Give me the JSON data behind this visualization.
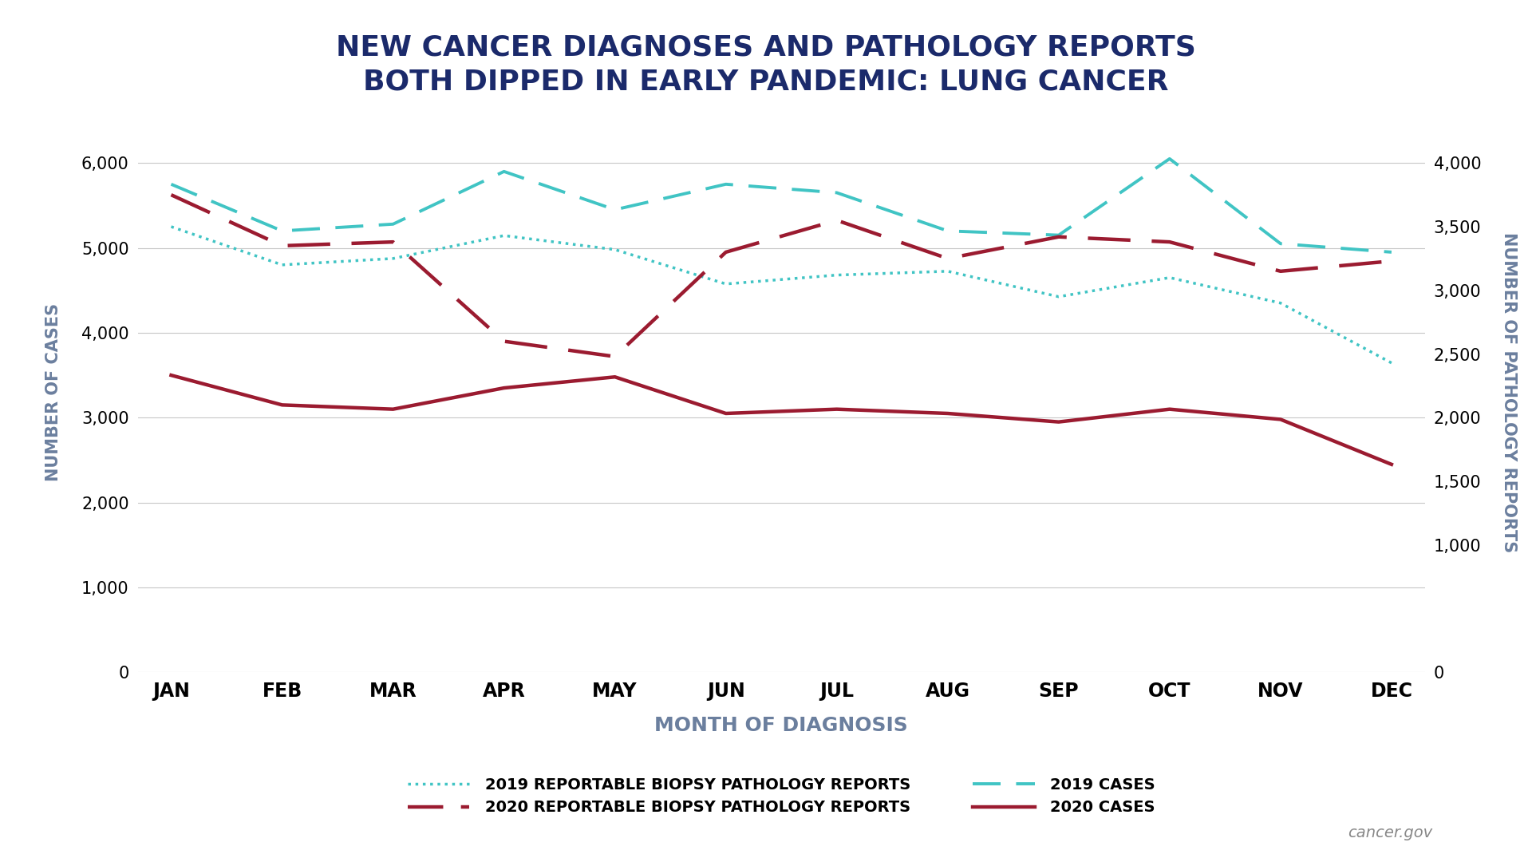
{
  "title_line1": "NEW CANCER DIAGNOSES AND PATHOLOGY REPORTS",
  "title_line2": "BOTH DIPPED IN EARLY PANDEMIC: LUNG CANCER",
  "xlabel": "MONTH OF DIAGNOSIS",
  "ylabel_left": "NUMBER OF CASES",
  "ylabel_right": "NUMBER OF PATHOLOGY REPORTS",
  "months": [
    "JAN",
    "FEB",
    "MAR",
    "APR",
    "MAY",
    "JUN",
    "JUL",
    "AUG",
    "SEP",
    "OCT",
    "NOV",
    "DEC"
  ],
  "cases_2019": [
    5750,
    5200,
    5280,
    5900,
    5450,
    5750,
    5650,
    5200,
    5150,
    6050,
    5050,
    4950
  ],
  "cases_2020": [
    3500,
    3150,
    3100,
    3350,
    3480,
    3050,
    3100,
    3050,
    2950,
    3100,
    2980,
    2450
  ],
  "pathology_2019": [
    3500,
    3200,
    3250,
    3430,
    3320,
    3050,
    3120,
    3150,
    2950,
    3100,
    2900,
    2430
  ],
  "pathology_2020": [
    3750,
    3350,
    3380,
    2600,
    2480,
    3300,
    3550,
    3250,
    3420,
    3380,
    3150,
    3230
  ],
  "cases_2019_color": "#40C4C4",
  "cases_2020_color": "#9B1B30",
  "pathology_2019_color": "#40C4C4",
  "pathology_2020_color": "#9B1B30",
  "background_color": "#FFFFFF",
  "title_color": "#1B2A6B",
  "watermark": "cancer.gov",
  "legend_labels": [
    "2019 REPORTABLE BIOPSY PATHOLOGY REPORTS",
    "2020 REPORTABLE BIOPSY PATHOLOGY REPORTS",
    "2019 CASES",
    "2020 CASES"
  ]
}
